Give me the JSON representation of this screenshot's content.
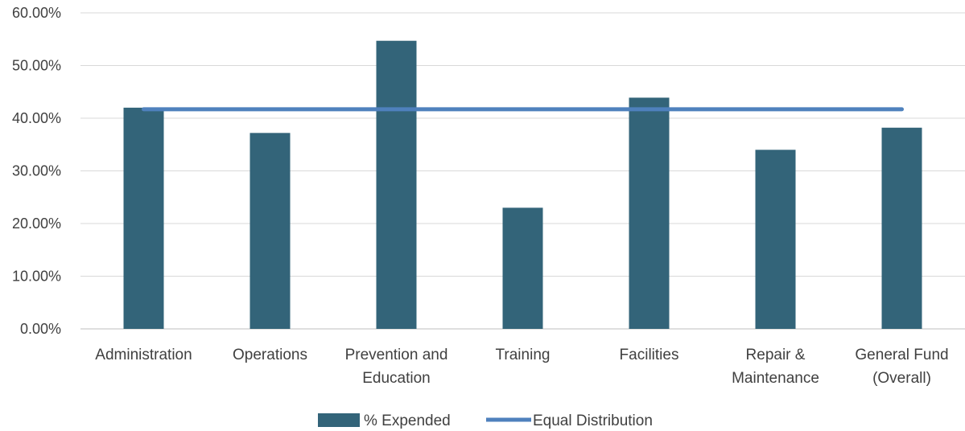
{
  "chart_data": {
    "type": "bar",
    "categories": [
      [
        "Administration"
      ],
      [
        "Operations"
      ],
      [
        "Prevention and",
        "Education"
      ],
      [
        "Training"
      ],
      [
        "Facilities"
      ],
      [
        "Repair &",
        "Maintenance"
      ],
      [
        "General Fund",
        "(Overall)"
      ]
    ],
    "series": [
      {
        "name": "% Expended",
        "type": "bar",
        "color": "#336479",
        "values": [
          42.0,
          37.2,
          54.7,
          23.0,
          43.9,
          34.0,
          38.2
        ]
      },
      {
        "name": "Equal Distribution",
        "type": "line",
        "color": "#4F81BD",
        "values": [
          41.7,
          41.7,
          41.7,
          41.7,
          41.7,
          41.7,
          41.7
        ]
      }
    ],
    "ylim": [
      0,
      60
    ],
    "yticks": [
      "0.00%",
      "10.00%",
      "20.00%",
      "30.00%",
      "40.00%",
      "50.00%",
      "60.00%"
    ],
    "grid": true,
    "legend": "bottom"
  }
}
